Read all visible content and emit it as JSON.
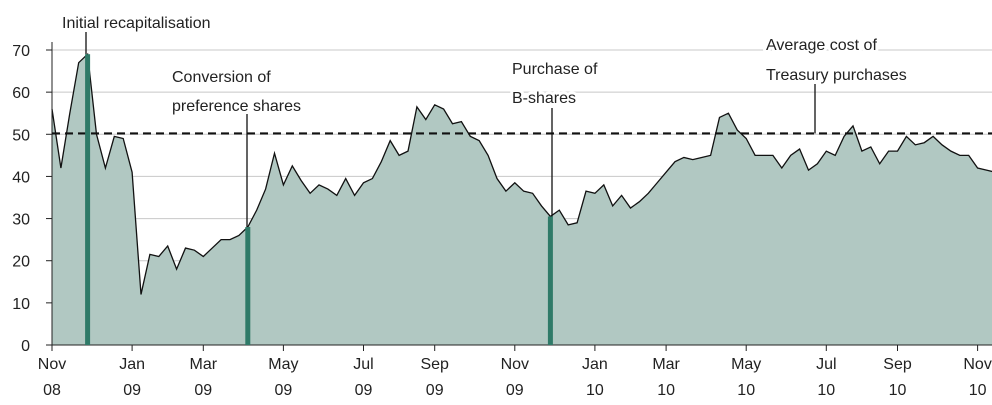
{
  "chart_data": {
    "type": "area",
    "categories": [
      "Nov\n08",
      null,
      null,
      null,
      null,
      null,
      null,
      null,
      null,
      "Jan\n09",
      null,
      null,
      null,
      null,
      null,
      null,
      null,
      "Mar\n09",
      null,
      null,
      null,
      null,
      null,
      null,
      null,
      null,
      "May\n09",
      null,
      null,
      null,
      null,
      null,
      null,
      null,
      null,
      "Jul\n09",
      null,
      null,
      null,
      null,
      null,
      null,
      null,
      "Sep\n09",
      null,
      null,
      null,
      null,
      null,
      null,
      null,
      null,
      "Nov\n09",
      null,
      null,
      null,
      null,
      null,
      null,
      null,
      null,
      "Jan\n10",
      null,
      null,
      null,
      null,
      null,
      null,
      null,
      "Mar\n10",
      null,
      null,
      null,
      null,
      null,
      null,
      null,
      null,
      "May\n10",
      null,
      null,
      null,
      null,
      null,
      null,
      null,
      null,
      "Jul\n10",
      null,
      null,
      null,
      null,
      null,
      null,
      null,
      "Sep\n10",
      null,
      null,
      null,
      null,
      null,
      null,
      null,
      null,
      "Nov\n10",
      null,
      null
    ],
    "values": [
      56,
      42,
      55,
      67,
      69,
      50,
      42,
      49.5,
      49,
      41,
      12,
      21.5,
      21,
      23.5,
      18,
      23,
      22.5,
      21,
      23,
      25,
      25,
      26,
      28,
      32,
      37,
      45.5,
      38,
      42.5,
      39,
      36,
      38,
      37,
      35.5,
      39.5,
      35.5,
      38.5,
      39.5,
      43.5,
      48.5,
      45,
      46,
      56.5,
      53.5,
      57,
      56,
      52.5,
      53,
      49.5,
      48.5,
      45,
      39.5,
      36.5,
      38.5,
      36.5,
      36,
      33,
      30.5,
      32,
      28.5,
      29,
      36.5,
      36,
      38,
      33,
      35.5,
      32.5,
      34,
      36,
      38.5,
      41,
      43.5,
      44.5,
      44,
      44.5,
      45,
      54,
      55,
      51,
      49,
      45,
      45,
      45,
      42,
      45,
      46.5,
      41.5,
      43,
      46,
      45,
      49.5,
      52,
      46,
      47,
      43,
      46,
      46,
      49.5,
      47.5,
      48,
      49.5,
      47.5,
      46,
      45,
      45,
      42,
      41.5,
      41
    ],
    "color": "#b1c8c2",
    "line_color": "#111111",
    "event_color": "#2f7a68",
    "ylim": [
      0,
      70
    ],
    "yticks": [
      0,
      10,
      20,
      30,
      40,
      50,
      60,
      70
    ],
    "grid": true,
    "annotations": [
      "Initial recapitalisation",
      "Conversion of\npreference shares",
      "Purchase of\nB-shares"
    ],
    "reference_line": {
      "label": "Average cost of\nTreasury purchases",
      "value": 50.2
    }
  }
}
